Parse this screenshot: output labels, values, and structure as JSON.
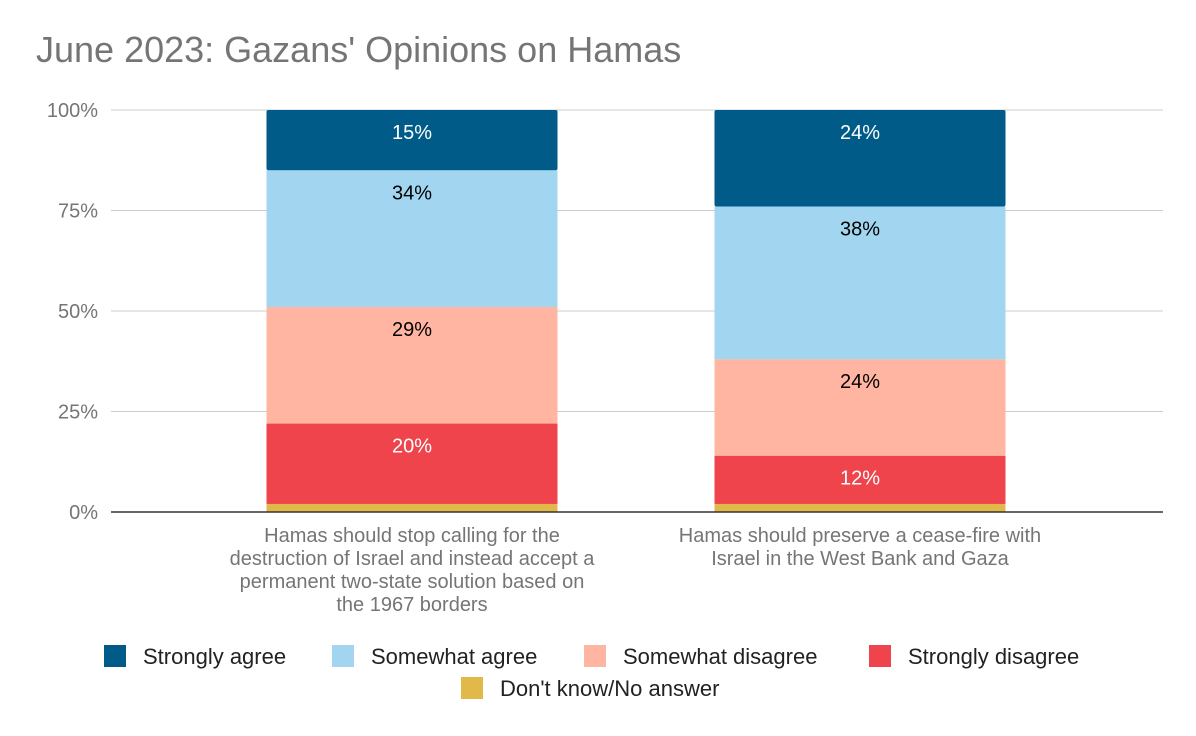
{
  "chart_data": {
    "type": "bar",
    "stacked": true,
    "title": "June 2023: Gazans' Opinions on Hamas",
    "xlabel": "",
    "ylabel": "",
    "ylim": [
      0,
      100
    ],
    "y_ticks": [
      "0%",
      "25%",
      "50%",
      "75%",
      "100%"
    ],
    "grid": true,
    "legend_position": "bottom",
    "categories": [
      [
        "Hamas should stop calling for the",
        "destruction of Israel and instead accept a",
        "permanent two-state solution based on",
        "the 1967 borders"
      ],
      [
        "Hamas should preserve a cease-fire with",
        "Israel in the West Bank and Gaza"
      ]
    ],
    "series": [
      {
        "name": "Don't know/No answer",
        "color": "#e1b84a",
        "values": [
          2,
          2
        ],
        "labels": [
          "",
          ""
        ],
        "label_color": "#000000"
      },
      {
        "name": "Strongly disagree",
        "color": "#ef444c",
        "values": [
          20,
          12
        ],
        "labels": [
          "20%",
          "12%"
        ],
        "label_color": "#ffffff"
      },
      {
        "name": "Somewhat disagree",
        "color": "#ffb5a1",
        "values": [
          29,
          24
        ],
        "labels": [
          "29%",
          "24%"
        ],
        "label_color": "#000000"
      },
      {
        "name": "Somewhat agree",
        "color": "#a2d6f0",
        "values": [
          34,
          38
        ],
        "labels": [
          "34%",
          "38%"
        ],
        "label_color": "#000000"
      },
      {
        "name": "Strongly agree",
        "color": "#005b88",
        "values": [
          15,
          24
        ],
        "labels": [
          "15%",
          "24%"
        ],
        "label_color": "#ffffff"
      }
    ],
    "legend_order": [
      "Strongly agree",
      "Somewhat agree",
      "Somewhat disagree",
      "Strongly disagree",
      "Don't know/No answer"
    ]
  }
}
